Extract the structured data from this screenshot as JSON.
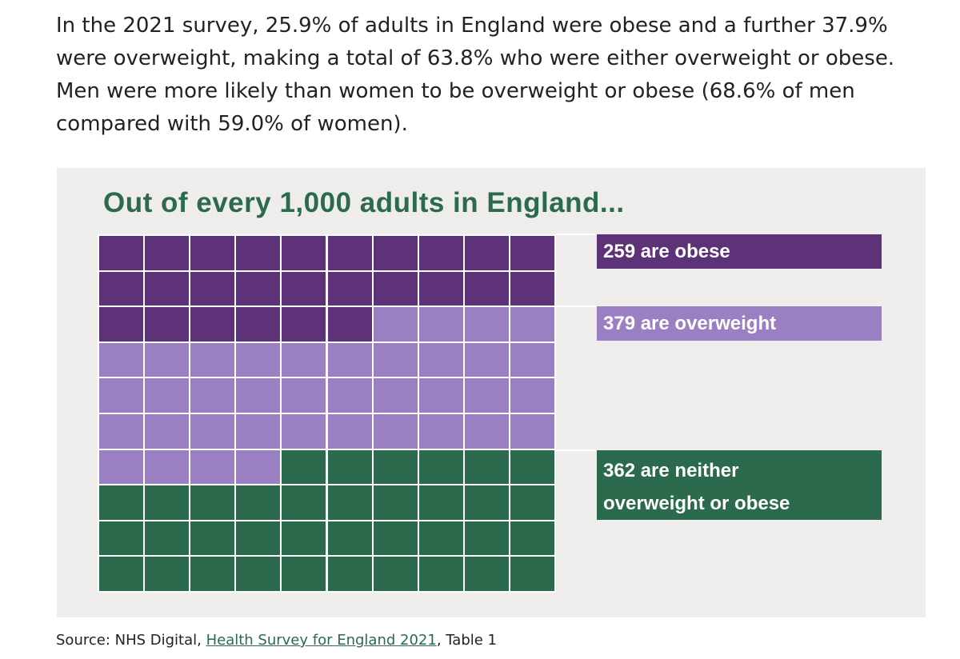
{
  "intro_text": "In the 2021 survey, 25.9% of adults in England were obese and a further 37.9% were overweight, making a total of 63.8% who were either overweight or obese. Men were more likely than women to be overweight or obese (68.6% of men compared with 59.0% of women).",
  "colors": {
    "obese": "#5e3278",
    "overweight": "#9b7fc3",
    "neither": "#2b6a4c",
    "title": "#2b6a4c",
    "panel_background": "#eeedec"
  },
  "chart_data": {
    "type": "waffle",
    "title": "Out of every 1,000 adults in England...",
    "grid": {
      "rows": 10,
      "columns": 10,
      "units_per_cell": 10,
      "total": 1000
    },
    "series": [
      {
        "name": "259 are obese",
        "value": 259,
        "cells": 26
      },
      {
        "name": "379 are overweight",
        "value": 379,
        "cells": 38
      },
      {
        "name": "362 are neither overweight or obese",
        "value": 362,
        "cells": 36
      }
    ]
  },
  "labels": {
    "obese": "259 are obese",
    "overweight": "379 are overweight",
    "neither_line1": "362 are neither",
    "neither_line2": "overweight or obese"
  },
  "source": {
    "prefix": "Source: NHS Digital, ",
    "link_text": "Health Survey for England 2021",
    "suffix": ", Table 1"
  }
}
